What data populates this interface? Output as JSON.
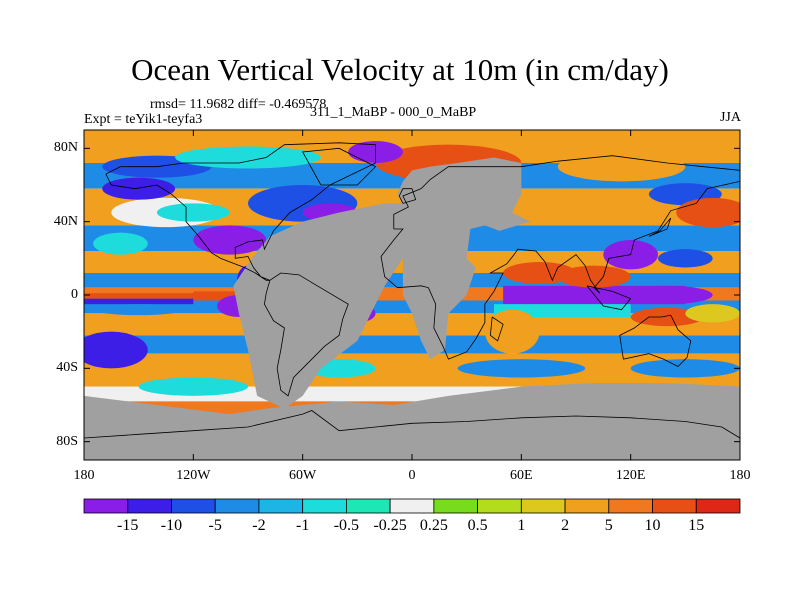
{
  "title": "Ocean Vertical Velocity at 10m (in cm/day)",
  "stats": {
    "rmsd": "rmsd= 11.9682 diff= -0.469578"
  },
  "experiment": "Expt = teYik1-teyfa3",
  "difference_label": "311_1_MaBP - 000_0_MaBP",
  "season": "JJA",
  "axes": {
    "lat_ticks": [
      "80N",
      "40N",
      "0",
      "40S",
      "80S"
    ],
    "lon_ticks": [
      "180",
      "120W",
      "60W",
      "0",
      "60E",
      "120E",
      "180"
    ]
  },
  "colorbar": {
    "labels": [
      "-15",
      "-10",
      "-5",
      "-2",
      "-1",
      "-0.5",
      "-0.25",
      "0.25",
      "0.5",
      "1",
      "2",
      "5",
      "10",
      "15"
    ],
    "colors": [
      "#8a1ee6",
      "#3c1ee6",
      "#1e50e6",
      "#1e8ce6",
      "#1eb4e6",
      "#1edcdc",
      "#1ee6b4",
      "#f0f0f0",
      "#78dc1e",
      "#b4dc1e",
      "#dcc81e",
      "#f0a01e",
      "#f0781e",
      "#e65014",
      "#dc2814"
    ]
  },
  "land_color": "#a0a0a0",
  "palette": {
    "violet": "#8a1ee6",
    "blue": "#3c1ee6",
    "mid_blue": "#1e50e6",
    "light_blue": "#1e8ce6",
    "cyan": "#1edcdc",
    "white": "#f0f0f0",
    "green": "#78dc1e",
    "yellow": "#dcc81e",
    "orange": "#f0a01e",
    "dark_orange": "#f0781e",
    "red": "#e65014"
  }
}
